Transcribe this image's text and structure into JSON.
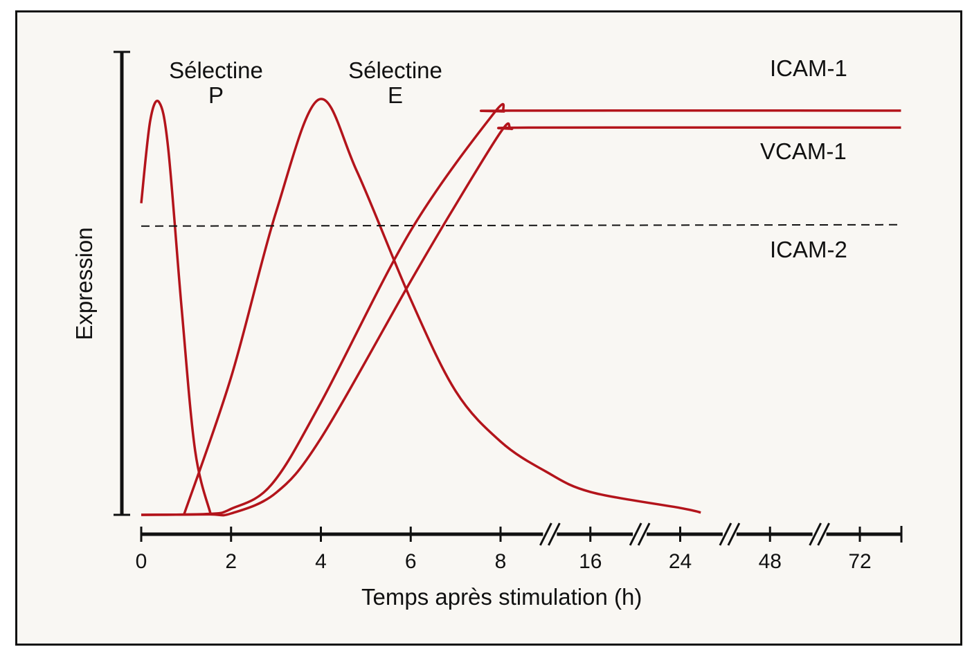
{
  "chart_data": {
    "type": "line",
    "title": "",
    "xlabel": "Temps après stimulation (h)",
    "ylabel": "Expression",
    "x_ticks": [
      0,
      2,
      4,
      6,
      8,
      16,
      24,
      48,
      72
    ],
    "x_tick_labels": [
      "0",
      "2",
      "4",
      "6",
      "8",
      "16",
      "24",
      "48",
      "72"
    ],
    "x_axis_breaks_after": [
      8,
      16,
      24,
      48
    ],
    "ylim": [
      0,
      100
    ],
    "line_color": "#b3141b",
    "series": [
      {
        "name": "Sélectine P",
        "label_line1": "Sélectine",
        "label_line2": "P",
        "x": [
          0,
          0.2,
          0.4,
          0.6,
          0.9,
          1.2,
          1.55
        ],
        "y": [
          68,
          86,
          90,
          80,
          45,
          14,
          0
        ]
      },
      {
        "name": "Sélectine E",
        "label_line1": "Sélectine",
        "label_line2": "E",
        "x": [
          0.95,
          2,
          3,
          3.95,
          4.8,
          6,
          7,
          8,
          12,
          16,
          24,
          29.5
        ],
        "y": [
          0,
          30,
          66,
          90.6,
          75,
          47,
          27,
          16,
          9.5,
          5,
          1.5,
          0.5
        ]
      },
      {
        "name": "ICAM-1",
        "x": [
          0,
          1.5,
          2,
          2.9,
          4,
          6,
          7.85,
          8.3,
          9,
          83
        ],
        "y": [
          0,
          0.2,
          1.3,
          6.6,
          24.5,
          62,
          87.6,
          88,
          88.2,
          88.2
        ]
      },
      {
        "name": "VCAM-1",
        "x": [
          0,
          1.5,
          2,
          3,
          4,
          6,
          6.9,
          8.15,
          9,
          10.8,
          83
        ],
        "y": [
          0,
          0.1,
          0.3,
          4.8,
          16.7,
          51,
          66,
          84,
          84.2,
          84.5,
          84.5
        ]
      },
      {
        "name": "ICAM-2",
        "dashed": true,
        "x": [
          0,
          83
        ],
        "y": [
          63,
          63.3
        ]
      }
    ]
  }
}
